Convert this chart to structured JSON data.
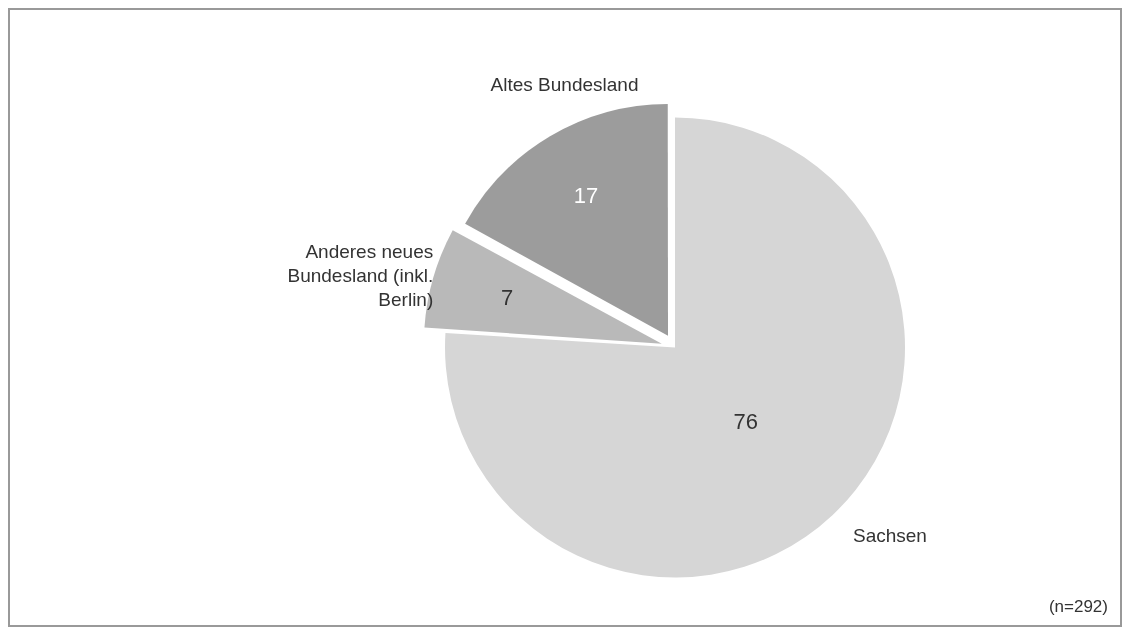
{
  "chart_data": {
    "type": "pie",
    "categories": [
      "Sachsen",
      "Anderes neues Bundesland (inkl. Berlin)",
      "Altes Bundesland"
    ],
    "values": [
      76,
      7,
      17
    ],
    "colors": [
      "#d6d6d6",
      "#b9b9b9",
      "#9c9c9c"
    ],
    "data_labels": true,
    "legend": false,
    "annotations": [
      "(n=292)"
    ]
  }
}
